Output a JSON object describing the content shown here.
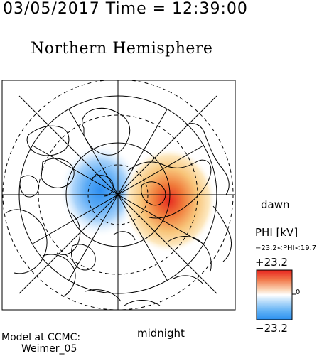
{
  "header": {
    "timestamp": "03/05/2017 Time = 12:39:00",
    "title": "Northern Hemisphere"
  },
  "plot": {
    "dawn_label": "dawn",
    "midnight_label": "midnight"
  },
  "colorbar": {
    "title": "PHI [kV]",
    "range_text": "−23.2<PHI<19.7",
    "max_label": "+23.2",
    "zero_label": "0",
    "min_label": "−23.2",
    "colors": {
      "negative": "#2a8ff0",
      "neutral": "#ffffff",
      "positive": "#e8231e"
    }
  },
  "footer": {
    "model_line1": "Model at CCMC:",
    "model_line2": "Weimer_05"
  }
}
